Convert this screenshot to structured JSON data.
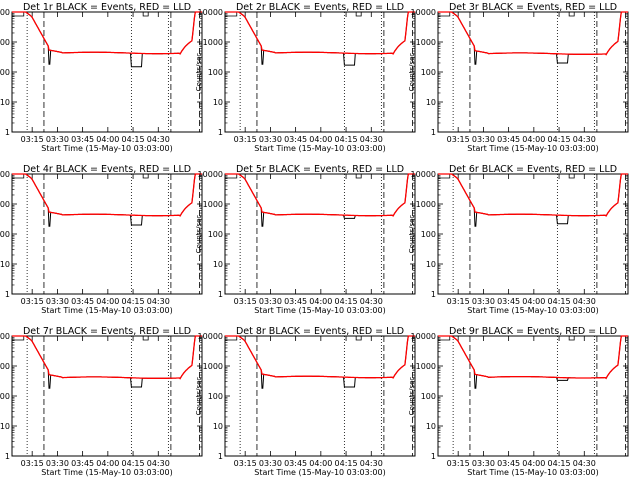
{
  "chart_data": [
    {
      "type": "line",
      "title": "Det 1r BLACK = Events, RED = LLD",
      "xlabel": "Start Time (15-May-10 03:03:00)",
      "ylabel": "Counts/sec",
      "x_ticks": [
        "03:15",
        "03:30",
        "03:45",
        "04:00",
        "04:15",
        "04:30"
      ],
      "y_ticks": [
        "1",
        "10",
        "100",
        "1000",
        "10000"
      ],
      "ylim": [
        1,
        10000
      ],
      "y_scale": "log",
      "dip_start": "04:14",
      "dip_end": "04:20",
      "dip_value": 150,
      "plateau_value": 400,
      "series": [
        {
          "color": "#000000"
        },
        {
          "color": "#ff0000"
        }
      ]
    },
    {
      "type": "line",
      "title": "Det 2r BLACK = Events, RED = LLD",
      "xlabel": "Start Time (15-May-10 03:03:00)",
      "ylabel": "Counts/sec",
      "x_ticks": [
        "03:15",
        "03:30",
        "03:45",
        "04:00",
        "04:15",
        "04:30"
      ],
      "y_ticks": [
        "1",
        "10",
        "100",
        "1000",
        "10000"
      ],
      "ylim": [
        1,
        10000
      ],
      "y_scale": "log",
      "dip_start": "04:14",
      "dip_end": "04:20",
      "dip_value": 170,
      "plateau_value": 400,
      "series": [
        {
          "color": "#000000"
        },
        {
          "color": "#ff0000"
        }
      ]
    },
    {
      "type": "line",
      "title": "Det 3r BLACK = Events, RED = LLD",
      "xlabel": "Start Time (15-May-10 03:03:00)",
      "ylabel": "Counts/sec",
      "x_ticks": [
        "03:15",
        "03:30",
        "03:45",
        "04:00",
        "04:15",
        "04:30"
      ],
      "y_ticks": [
        "1",
        "10",
        "100",
        "1000",
        "10000"
      ],
      "ylim": [
        1,
        10000
      ],
      "y_scale": "log",
      "dip_start": "04:14",
      "dip_end": "04:20",
      "dip_value": 200,
      "plateau_value": 380,
      "series": [
        {
          "color": "#000000"
        },
        {
          "color": "#ff0000"
        }
      ]
    },
    {
      "type": "line",
      "title": "Det 4r BLACK = Events, RED = LLD",
      "xlabel": "Start Time (15-May-10 03:03:00)",
      "ylabel": "Counts/sec",
      "x_ticks": [
        "03:15",
        "03:30",
        "03:45",
        "04:00",
        "04:15",
        "04:30"
      ],
      "y_ticks": [
        "1",
        "10",
        "100",
        "1000",
        "10000"
      ],
      "ylim": [
        1,
        10000
      ],
      "y_scale": "log",
      "dip_start": "04:14",
      "dip_end": "04:20",
      "dip_value": 200,
      "plateau_value": 400,
      "series": [
        {
          "color": "#000000"
        },
        {
          "color": "#ff0000"
        }
      ]
    },
    {
      "type": "line",
      "title": "Det 5r BLACK = Events, RED = LLD",
      "xlabel": "Start Time (15-May-10 03:03:00)",
      "ylabel": "Counts/sec",
      "x_ticks": [
        "03:15",
        "03:30",
        "03:45",
        "04:00",
        "04:15",
        "04:30"
      ],
      "y_ticks": [
        "1",
        "10",
        "100",
        "1000",
        "10000"
      ],
      "ylim": [
        1,
        10000
      ],
      "y_scale": "log",
      "dip_start": "04:14",
      "dip_end": "04:20",
      "dip_value": 330,
      "plateau_value": 400,
      "series": [
        {
          "color": "#000000"
        },
        {
          "color": "#ff0000"
        }
      ]
    },
    {
      "type": "line",
      "title": "Det 6r BLACK = Events, RED = LLD",
      "xlabel": "Start Time (15-May-10 03:03:00)",
      "ylabel": "Counts/sec",
      "x_ticks": [
        "03:15",
        "03:30",
        "03:45",
        "04:00",
        "04:15",
        "04:30"
      ],
      "y_ticks": [
        "1",
        "10",
        "100",
        "1000",
        "10000"
      ],
      "ylim": [
        1,
        10000
      ],
      "y_scale": "log",
      "dip_start": "04:14",
      "dip_end": "04:20",
      "dip_value": 220,
      "plateau_value": 400,
      "series": [
        {
          "color": "#000000"
        },
        {
          "color": "#ff0000"
        }
      ]
    },
    {
      "type": "line",
      "title": "Det 7r BLACK = Events, RED = LLD",
      "xlabel": "Start Time (15-May-10 03:03:00)",
      "ylabel": "Counts/sec",
      "x_ticks": [
        "03:15",
        "03:30",
        "03:45",
        "04:00",
        "04:15",
        "04:30"
      ],
      "y_ticks": [
        "1",
        "10",
        "100",
        "1000",
        "10000"
      ],
      "ylim": [
        1,
        10000
      ],
      "y_scale": "log",
      "dip_start": "04:14",
      "dip_end": "04:20",
      "dip_value": 200,
      "plateau_value": 380,
      "series": [
        {
          "color": "#000000"
        },
        {
          "color": "#ff0000"
        }
      ]
    },
    {
      "type": "line",
      "title": "Det 8r BLACK = Events, RED = LLD",
      "xlabel": "Start Time (15-May-10 03:03:00)",
      "ylabel": "Counts/sec",
      "x_ticks": [
        "03:15",
        "03:30",
        "03:45",
        "04:00",
        "04:15",
        "04:30"
      ],
      "y_ticks": [
        "1",
        "10",
        "100",
        "1000",
        "10000"
      ],
      "ylim": [
        1,
        10000
      ],
      "y_scale": "log",
      "dip_start": "04:14",
      "dip_end": "04:20",
      "dip_value": 200,
      "plateau_value": 400,
      "series": [
        {
          "color": "#000000"
        },
        {
          "color": "#ff0000"
        }
      ]
    },
    {
      "type": "line",
      "title": "Det 9r BLACK = Events, RED = LLD",
      "xlabel": "Start Time (15-May-10 03:03:00)",
      "ylabel": "Counts/sec",
      "x_ticks": [
        "03:15",
        "03:30",
        "03:45",
        "04:00",
        "04:15",
        "04:30"
      ],
      "y_ticks": [
        "1",
        "10",
        "100",
        "1000",
        "10000"
      ],
      "ylim": [
        1,
        10000
      ],
      "y_scale": "log",
      "dip_start": "04:14",
      "dip_end": "04:20",
      "dip_value": 330,
      "plateau_value": 390,
      "series": [
        {
          "color": "#000000"
        },
        {
          "color": "#ff0000"
        }
      ]
    }
  ]
}
